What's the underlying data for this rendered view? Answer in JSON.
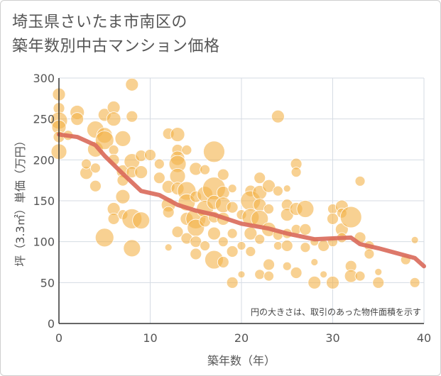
{
  "chart_data": {
    "type": "scatter",
    "title": [
      "埼玉県さいたま市南区の",
      "築年数別中古マンション価格"
    ],
    "xlabel": "築年数（年）",
    "ylabel": "坪（3.3㎡）単価（万円）",
    "xlim": [
      0,
      40
    ],
    "ylim": [
      0,
      300
    ],
    "xticks": [
      0,
      10,
      20,
      30,
      40
    ],
    "yticks": [
      0,
      50,
      100,
      150,
      200,
      250,
      300
    ],
    "grid": true,
    "note": "円の大きさは、取引のあった物件面積を示す",
    "colors": {
      "bubble": "#f3b34a",
      "trend": "#d9695a",
      "grid": "#d5dbe3",
      "axis": "#333333"
    },
    "trend_line": {
      "x": [
        0,
        2,
        4,
        5,
        7,
        9,
        11,
        13,
        15,
        17,
        20,
        23,
        25,
        28,
        30,
        32,
        33,
        35,
        37,
        39,
        40
      ],
      "y": [
        231,
        228,
        218,
        205,
        183,
        162,
        157,
        145,
        138,
        133,
        122,
        116,
        110,
        103,
        104,
        105,
        97,
        92,
        86,
        80,
        70
      ]
    },
    "bubbles": [
      {
        "x": 0,
        "y": 280,
        "s": 9
      },
      {
        "x": 0,
        "y": 263,
        "s": 8
      },
      {
        "x": 0,
        "y": 248,
        "s": 12
      },
      {
        "x": 0,
        "y": 240,
        "s": 10
      },
      {
        "x": 0,
        "y": 228,
        "s": 8
      },
      {
        "x": 0,
        "y": 210,
        "s": 11
      },
      {
        "x": 1,
        "y": 230,
        "s": 7
      },
      {
        "x": 2,
        "y": 258,
        "s": 10
      },
      {
        "x": 2,
        "y": 250,
        "s": 9
      },
      {
        "x": 3,
        "y": 184,
        "s": 9
      },
      {
        "x": 3,
        "y": 195,
        "s": 7
      },
      {
        "x": 4,
        "y": 237,
        "s": 12
      },
      {
        "x": 4,
        "y": 213,
        "s": 11
      },
      {
        "x": 4,
        "y": 190,
        "s": 7
      },
      {
        "x": 4,
        "y": 168,
        "s": 8
      },
      {
        "x": 5,
        "y": 255,
        "s": 9
      },
      {
        "x": 5,
        "y": 230,
        "s": 11
      },
      {
        "x": 5,
        "y": 224,
        "s": 13
      },
      {
        "x": 5,
        "y": 105,
        "s": 13
      },
      {
        "x": 6,
        "y": 264,
        "s": 9
      },
      {
        "x": 6,
        "y": 250,
        "s": 10
      },
      {
        "x": 6,
        "y": 212,
        "s": 7
      },
      {
        "x": 6,
        "y": 200,
        "s": 8
      },
      {
        "x": 6,
        "y": 140,
        "s": 9
      },
      {
        "x": 6,
        "y": 128,
        "s": 8
      },
      {
        "x": 7,
        "y": 226,
        "s": 11
      },
      {
        "x": 7,
        "y": 186,
        "s": 9
      },
      {
        "x": 7,
        "y": 175,
        "s": 8
      },
      {
        "x": 7,
        "y": 155,
        "s": 10
      },
      {
        "x": 7,
        "y": 133,
        "s": 7
      },
      {
        "x": 8,
        "y": 292,
        "s": 9
      },
      {
        "x": 8,
        "y": 253,
        "s": 8
      },
      {
        "x": 8,
        "y": 198,
        "s": 11
      },
      {
        "x": 8,
        "y": 185,
        "s": 8
      },
      {
        "x": 8,
        "y": 128,
        "s": 14
      },
      {
        "x": 8,
        "y": 92,
        "s": 12
      },
      {
        "x": 9,
        "y": 205,
        "s": 8
      },
      {
        "x": 9,
        "y": 185,
        "s": 9
      },
      {
        "x": 9,
        "y": 126,
        "s": 12
      },
      {
        "x": 10,
        "y": 206,
        "s": 8
      },
      {
        "x": 11,
        "y": 195,
        "s": 7
      },
      {
        "x": 11,
        "y": 178,
        "s": 8
      },
      {
        "x": 12,
        "y": 232,
        "s": 8
      },
      {
        "x": 12,
        "y": 167,
        "s": 9
      },
      {
        "x": 12,
        "y": 145,
        "s": 10
      },
      {
        "x": 12,
        "y": 136,
        "s": 8
      },
      {
        "x": 12,
        "y": 93,
        "s": 5
      },
      {
        "x": 13,
        "y": 231,
        "s": 10
      },
      {
        "x": 13,
        "y": 212,
        "s": 8
      },
      {
        "x": 13,
        "y": 202,
        "s": 10
      },
      {
        "x": 13,
        "y": 195,
        "s": 12
      },
      {
        "x": 13,
        "y": 180,
        "s": 11
      },
      {
        "x": 13,
        "y": 165,
        "s": 9
      },
      {
        "x": 13,
        "y": 112,
        "s": 8
      },
      {
        "x": 14,
        "y": 212,
        "s": 7
      },
      {
        "x": 14,
        "y": 162,
        "s": 13
      },
      {
        "x": 14,
        "y": 148,
        "s": 12
      },
      {
        "x": 14,
        "y": 128,
        "s": 9
      },
      {
        "x": 14,
        "y": 104,
        "s": 8
      },
      {
        "x": 15,
        "y": 189,
        "s": 9
      },
      {
        "x": 15,
        "y": 155,
        "s": 8
      },
      {
        "x": 15,
        "y": 128,
        "s": 14
      },
      {
        "x": 15,
        "y": 117,
        "s": 12
      },
      {
        "x": 15,
        "y": 100,
        "s": 8
      },
      {
        "x": 15,
        "y": 85,
        "s": 8
      },
      {
        "x": 16,
        "y": 188,
        "s": 7
      },
      {
        "x": 16,
        "y": 158,
        "s": 11
      },
      {
        "x": 16,
        "y": 140,
        "s": 12
      },
      {
        "x": 16,
        "y": 125,
        "s": 8
      },
      {
        "x": 16,
        "y": 95,
        "s": 7
      },
      {
        "x": 17,
        "y": 210,
        "s": 15
      },
      {
        "x": 17,
        "y": 165,
        "s": 16
      },
      {
        "x": 17,
        "y": 148,
        "s": 10
      },
      {
        "x": 17,
        "y": 130,
        "s": 8
      },
      {
        "x": 17,
        "y": 110,
        "s": 9
      },
      {
        "x": 17,
        "y": 78,
        "s": 13
      },
      {
        "x": 18,
        "y": 182,
        "s": 8
      },
      {
        "x": 18,
        "y": 160,
        "s": 9
      },
      {
        "x": 18,
        "y": 145,
        "s": 11
      },
      {
        "x": 18,
        "y": 128,
        "s": 9
      },
      {
        "x": 18,
        "y": 100,
        "s": 7
      },
      {
        "x": 18,
        "y": 75,
        "s": 8
      },
      {
        "x": 19,
        "y": 165,
        "s": 6
      },
      {
        "x": 19,
        "y": 142,
        "s": 8
      },
      {
        "x": 19,
        "y": 110,
        "s": 7
      },
      {
        "x": 19,
        "y": 88,
        "s": 8
      },
      {
        "x": 19,
        "y": 50,
        "s": 8
      },
      {
        "x": 20,
        "y": 133,
        "s": 7
      },
      {
        "x": 20,
        "y": 95,
        "s": 6
      },
      {
        "x": 20,
        "y": 60,
        "s": 5
      },
      {
        "x": 21,
        "y": 162,
        "s": 8
      },
      {
        "x": 21,
        "y": 150,
        "s": 14
      },
      {
        "x": 21,
        "y": 130,
        "s": 12
      },
      {
        "x": 21,
        "y": 110,
        "s": 9
      },
      {
        "x": 21,
        "y": 88,
        "s": 7
      },
      {
        "x": 22,
        "y": 178,
        "s": 8
      },
      {
        "x": 22,
        "y": 160,
        "s": 10
      },
      {
        "x": 22,
        "y": 145,
        "s": 9
      },
      {
        "x": 22,
        "y": 128,
        "s": 12
      },
      {
        "x": 22,
        "y": 103,
        "s": 7
      },
      {
        "x": 22,
        "y": 60,
        "s": 7
      },
      {
        "x": 23,
        "y": 168,
        "s": 9
      },
      {
        "x": 23,
        "y": 140,
        "s": 7
      },
      {
        "x": 23,
        "y": 115,
        "s": 10
      },
      {
        "x": 23,
        "y": 72,
        "s": 8
      },
      {
        "x": 23,
        "y": 58,
        "s": 7
      },
      {
        "x": 24,
        "y": 253,
        "s": 9
      },
      {
        "x": 24,
        "y": 162,
        "s": 7
      },
      {
        "x": 24,
        "y": 108,
        "s": 7
      },
      {
        "x": 24,
        "y": 95,
        "s": 6
      },
      {
        "x": 25,
        "y": 165,
        "s": 5
      },
      {
        "x": 25,
        "y": 145,
        "s": 8
      },
      {
        "x": 25,
        "y": 133,
        "s": 9
      },
      {
        "x": 25,
        "y": 110,
        "s": 7
      },
      {
        "x": 25,
        "y": 95,
        "s": 8
      },
      {
        "x": 25,
        "y": 70,
        "s": 6
      },
      {
        "x": 26,
        "y": 195,
        "s": 8
      },
      {
        "x": 26,
        "y": 185,
        "s": 7
      },
      {
        "x": 26,
        "y": 140,
        "s": 9
      },
      {
        "x": 26,
        "y": 115,
        "s": 7
      },
      {
        "x": 26,
        "y": 62,
        "s": 8
      },
      {
        "x": 27,
        "y": 140,
        "s": 12
      },
      {
        "x": 27,
        "y": 115,
        "s": 8
      },
      {
        "x": 27,
        "y": 93,
        "s": 7
      },
      {
        "x": 28,
        "y": 100,
        "s": 6
      },
      {
        "x": 28,
        "y": 75,
        "s": 5
      },
      {
        "x": 28,
        "y": 50,
        "s": 9
      },
      {
        "x": 29,
        "y": 95,
        "s": 8
      },
      {
        "x": 29,
        "y": 60,
        "s": 5
      },
      {
        "x": 30,
        "y": 140,
        "s": 7
      },
      {
        "x": 30,
        "y": 128,
        "s": 8
      },
      {
        "x": 30,
        "y": 100,
        "s": 7
      },
      {
        "x": 30,
        "y": 50,
        "s": 9
      },
      {
        "x": 31,
        "y": 143,
        "s": 9
      },
      {
        "x": 31,
        "y": 135,
        "s": 7
      },
      {
        "x": 31,
        "y": 115,
        "s": 9
      },
      {
        "x": 31,
        "y": 105,
        "s": 7
      },
      {
        "x": 32,
        "y": 130,
        "s": 15
      },
      {
        "x": 32,
        "y": 70,
        "s": 8
      },
      {
        "x": 32,
        "y": 58,
        "s": 9
      },
      {
        "x": 33,
        "y": 174,
        "s": 7
      },
      {
        "x": 33,
        "y": 105,
        "s": 8
      },
      {
        "x": 33,
        "y": 58,
        "s": 7
      },
      {
        "x": 34,
        "y": 95,
        "s": 7
      },
      {
        "x": 34,
        "y": 85,
        "s": 7
      },
      {
        "x": 35,
        "y": 63,
        "s": 5
      },
      {
        "x": 35,
        "y": 50,
        "s": 8
      },
      {
        "x": 38,
        "y": 78,
        "s": 7
      },
      {
        "x": 39,
        "y": 102,
        "s": 5
      },
      {
        "x": 39,
        "y": 50,
        "s": 7
      }
    ]
  }
}
